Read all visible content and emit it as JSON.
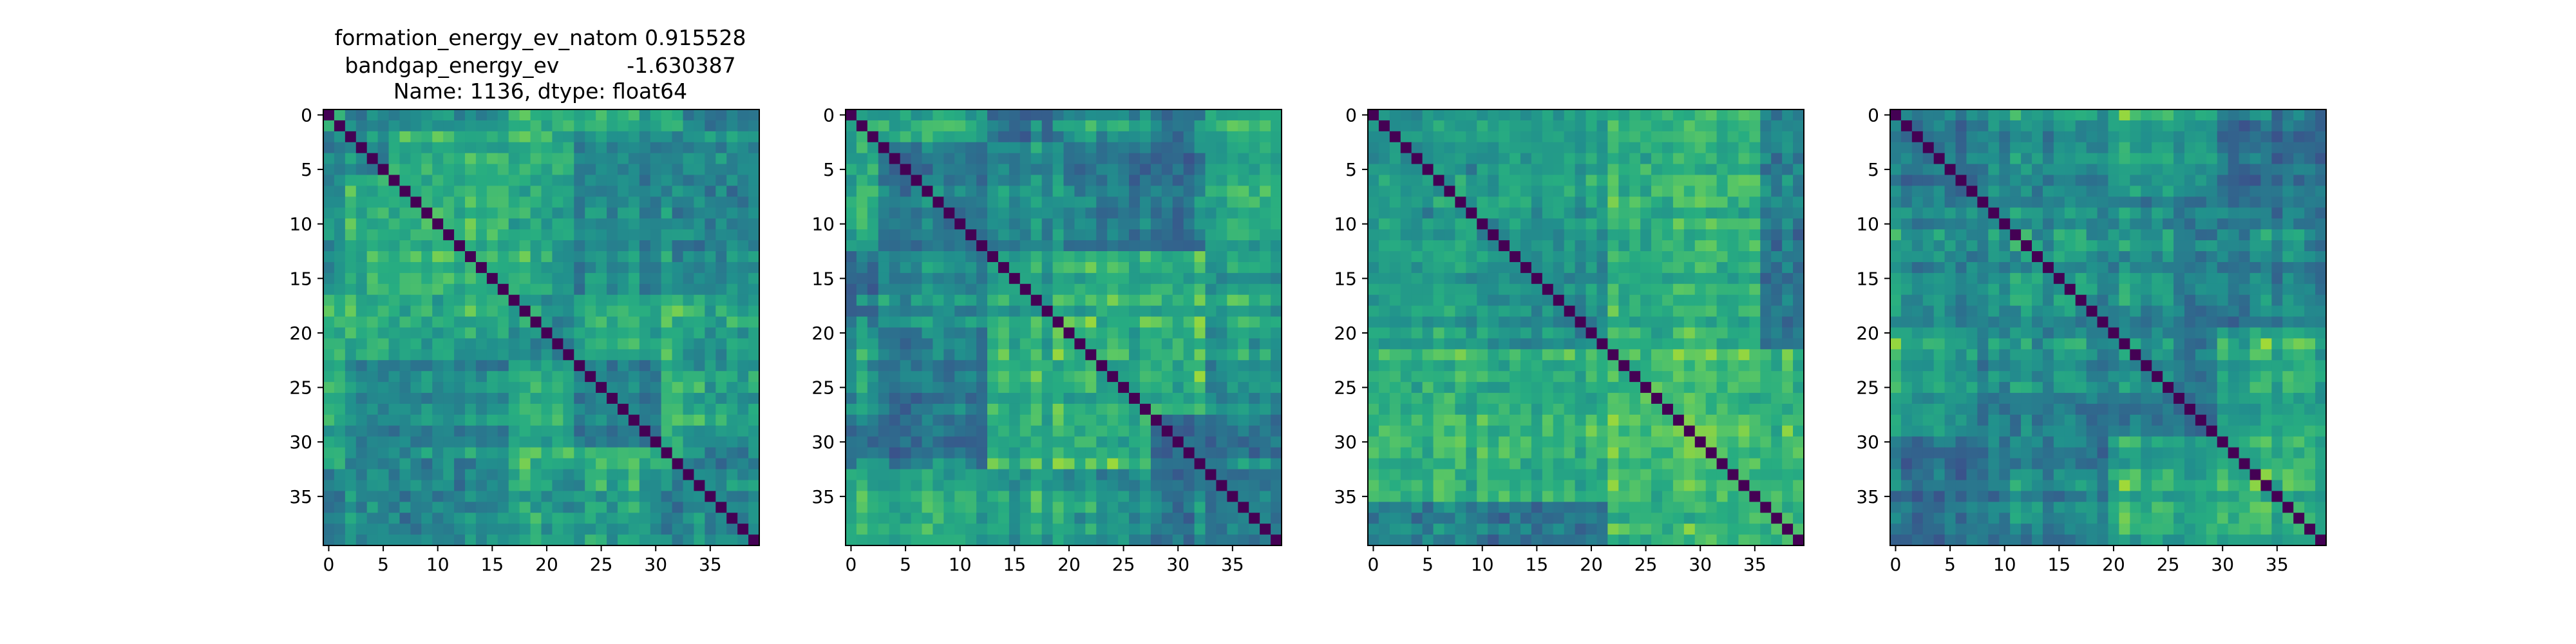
{
  "figure": {
    "title_lines": [
      "formation_energy_ev_natom    0.915528",
      "bandgap_energy_ev          -1.630387",
      "Name: 1136, dtype: float64"
    ]
  },
  "chart_data": [
    {
      "type": "heatmap",
      "size": 40,
      "seed": 1136,
      "colormap": "viridis",
      "diagonal": "min",
      "block_breaks": [
        2,
        6,
        17,
        23,
        31,
        33
      ],
      "xticks": [
        0,
        5,
        10,
        15,
        20,
        25,
        30,
        35
      ],
      "yticks": [
        0,
        5,
        10,
        15,
        20,
        25,
        30,
        35
      ],
      "xlim": [
        -0.5,
        39.5
      ],
      "ylim": [
        39.5,
        -0.5
      ]
    },
    {
      "type": "heatmap",
      "size": 40,
      "seed": 2207,
      "colormap": "viridis",
      "diagonal": "min",
      "block_breaks": [
        3,
        13,
        20,
        28,
        33
      ],
      "xticks": [
        0,
        5,
        10,
        15,
        20,
        25,
        30,
        35
      ],
      "yticks": [
        0,
        5,
        10,
        15,
        20,
        25,
        30,
        35
      ],
      "xlim": [
        -0.5,
        39.5
      ],
      "ylim": [
        39.5,
        -0.5
      ]
    },
    {
      "type": "heatmap",
      "size": 40,
      "seed": 3318,
      "colormap": "viridis",
      "diagonal": "min",
      "block_breaks": [
        10,
        22,
        36
      ],
      "xticks": [
        0,
        5,
        10,
        15,
        20,
        25,
        30,
        35
      ],
      "yticks": [
        0,
        5,
        10,
        15,
        20,
        25,
        30,
        35
      ],
      "xlim": [
        -0.5,
        39.5
      ],
      "ylim": [
        39.5,
        -0.5
      ]
    },
    {
      "type": "heatmap",
      "size": 40,
      "seed": 4429,
      "colormap": "viridis",
      "diagonal": "min",
      "block_breaks": [
        8,
        20,
        30
      ],
      "xticks": [
        0,
        5,
        10,
        15,
        20,
        25,
        30,
        35
      ],
      "yticks": [
        0,
        5,
        10,
        15,
        20,
        25,
        30,
        35
      ],
      "xlim": [
        -0.5,
        39.5
      ],
      "ylim": [
        39.5,
        -0.5
      ]
    }
  ]
}
